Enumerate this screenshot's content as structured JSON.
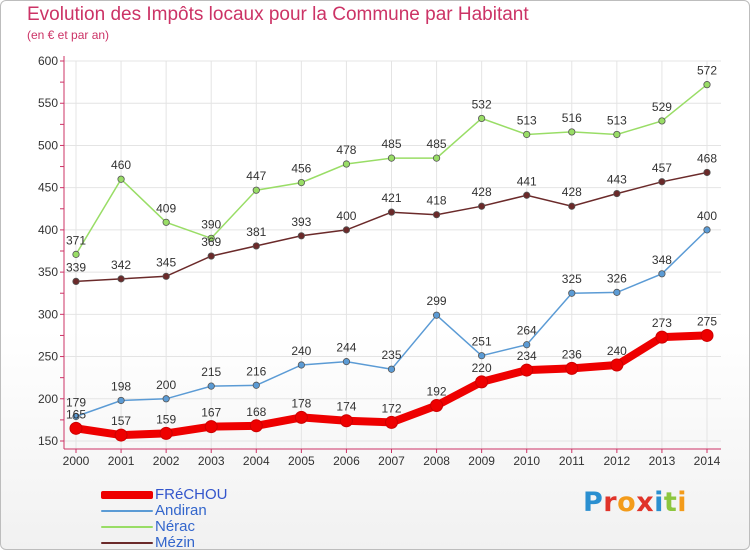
{
  "title": "Evolution des Impôts locaux pour la Commune par Habitant",
  "subtitle": "(en € et par an)",
  "brand": {
    "letters": [
      {
        "ch": "P",
        "color": "#2a8fd0"
      },
      {
        "ch": "r",
        "color": "#e0342a"
      },
      {
        "ch": "o",
        "color": "#f39b1a"
      },
      {
        "ch": "x",
        "color": "#e0342a"
      },
      {
        "ch": "i",
        "color": "#2a8fd0"
      },
      {
        "ch": "t",
        "color": "#8cc63e"
      },
      {
        "ch": "i",
        "color": "#f39b1a"
      }
    ]
  },
  "chart_data": {
    "type": "line",
    "title": "Evolution des Impôts locaux pour la Commune par Habitant",
    "subtitle": "(en € et par an)",
    "x": [
      "2000",
      "2001",
      "2002",
      "2003",
      "2004",
      "2005",
      "2006",
      "2007",
      "2008",
      "2009",
      "2010",
      "2011",
      "2012",
      "2013",
      "2014"
    ],
    "ylim": [
      150,
      600
    ],
    "yticks": [
      "150",
      "200",
      "250",
      "300",
      "350",
      "400",
      "450",
      "500",
      "550",
      "600"
    ],
    "grid": true,
    "legend_position": "bottom-left",
    "series": [
      {
        "name": "FRéCHOU",
        "color": "#ee0000",
        "emphasis": true,
        "values": [
          165,
          157,
          159,
          167,
          168,
          178,
          174,
          172,
          192,
          220,
          234,
          236,
          240,
          273,
          275
        ],
        "labels": [
          "165",
          "157",
          "159",
          "167",
          "168",
          "178",
          "174",
          "172",
          "192",
          "220",
          "234",
          "236",
          "240",
          "273",
          "275"
        ]
      },
      {
        "name": "Andiran",
        "color": "#5b9bd5",
        "values": [
          179,
          198,
          200,
          215,
          216,
          240,
          244,
          235,
          299,
          251,
          264,
          325,
          326,
          348,
          400
        ],
        "labels": [
          "179",
          "198",
          "200",
          "215",
          "216",
          "240",
          "244",
          "235",
          "299",
          "251",
          "264",
          "325",
          "326",
          "348",
          "400"
        ]
      },
      {
        "name": "Nérac",
        "color": "#99dd66",
        "values": [
          371,
          460,
          409,
          390,
          447,
          456,
          478,
          485,
          485,
          532,
          513,
          516,
          513,
          529,
          572
        ],
        "labels": [
          "371",
          "460",
          "409",
          "390",
          "447",
          "456",
          "478",
          "485",
          "485",
          "532",
          "513",
          "516",
          "513",
          "529",
          "572"
        ]
      },
      {
        "name": "Mézin",
        "color": "#6b2a2a",
        "values": [
          339,
          342,
          345,
          369,
          381,
          393,
          400,
          421,
          418,
          428,
          441,
          428,
          443,
          457,
          468
        ],
        "labels": [
          "339",
          "342",
          "345",
          "369",
          "381",
          "393",
          "400",
          "421",
          "418",
          "428",
          "441",
          "428",
          "443",
          "457",
          "468"
        ]
      }
    ]
  }
}
